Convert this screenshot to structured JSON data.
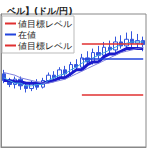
{
  "chart_data": {
    "type": "candlestick",
    "title": "ベル】(ドル/円)",
    "categories": [
      null,
      null,
      null,
      null,
      null,
      null,
      null,
      null,
      null,
      null,
      null,
      null,
      null,
      null,
      null,
      null,
      null,
      null,
      null,
      null,
      null,
      null,
      null,
      null,
      null,
      null
    ],
    "ylim": [
      0,
      100
    ],
    "grid": false,
    "tick_labels": false,
    "series": [
      {
        "type": "candlestick",
        "color": "#3355dd",
        "values": [
          [
            55,
            50,
            48,
            58
          ],
          [
            50,
            47,
            45,
            52
          ],
          [
            47,
            51,
            44,
            53
          ],
          [
            51,
            46,
            43,
            53
          ],
          [
            46,
            44,
            41,
            48
          ],
          [
            44,
            48,
            42,
            50
          ],
          [
            48,
            45,
            43,
            51
          ],
          [
            45,
            50,
            44,
            52
          ],
          [
            50,
            54,
            48,
            56
          ],
          [
            54,
            52,
            49,
            57
          ],
          [
            52,
            58,
            50,
            60
          ],
          [
            58,
            55,
            52,
            61
          ],
          [
            55,
            62,
            53,
            64
          ],
          [
            62,
            60,
            57,
            66
          ],
          [
            60,
            67,
            58,
            70
          ],
          [
            67,
            64,
            61,
            72
          ],
          [
            64,
            71,
            62,
            74
          ],
          [
            71,
            69,
            66,
            76
          ],
          [
            69,
            75,
            67,
            79
          ],
          [
            75,
            73,
            70,
            80
          ],
          [
            73,
            79,
            71,
            83
          ],
          [
            79,
            76,
            74,
            84
          ],
          [
            76,
            81,
            73,
            86
          ],
          [
            81,
            78,
            75,
            87
          ],
          [
            78,
            80,
            74,
            85
          ],
          [
            80,
            77,
            72,
            83
          ]
        ]
      },
      {
        "type": "line",
        "color": "#1a1acc",
        "line_style": "thick",
        "values": [
          50,
          50,
          49,
          49,
          48,
          48,
          48,
          48,
          49,
          50,
          52,
          52,
          55,
          58,
          58,
          62,
          64,
          64,
          68,
          70,
          70,
          72,
          74,
          74,
          74,
          74
        ]
      },
      {
        "type": "line",
        "color": "#3fa9e0",
        "line_style": "thin",
        "values": [
          52,
          50,
          48,
          48,
          46,
          46,
          47,
          47,
          50,
          52,
          54,
          55,
          58,
          60,
          63,
          65,
          67,
          69,
          71,
          73,
          75,
          77,
          78,
          79,
          79,
          79
        ]
      },
      {
        "type": "line",
        "color": "#7f7fdd",
        "line_style": "thin",
        "values": [
          56,
          55,
          54,
          52,
          51,
          50,
          49,
          48,
          48,
          49,
          50,
          51,
          53,
          55,
          57,
          59,
          61,
          63,
          65,
          67,
          69,
          71,
          72,
          73,
          74,
          75
        ]
      }
    ],
    "levels": [
      {
        "label": "値目標レベル",
        "value": 78,
        "color": "#e03030"
      },
      {
        "label": "在値",
        "value": 66,
        "color": "#2244dd"
      },
      {
        "label": "値目標レベル",
        "value": 39,
        "color": "#e03030"
      }
    ]
  }
}
